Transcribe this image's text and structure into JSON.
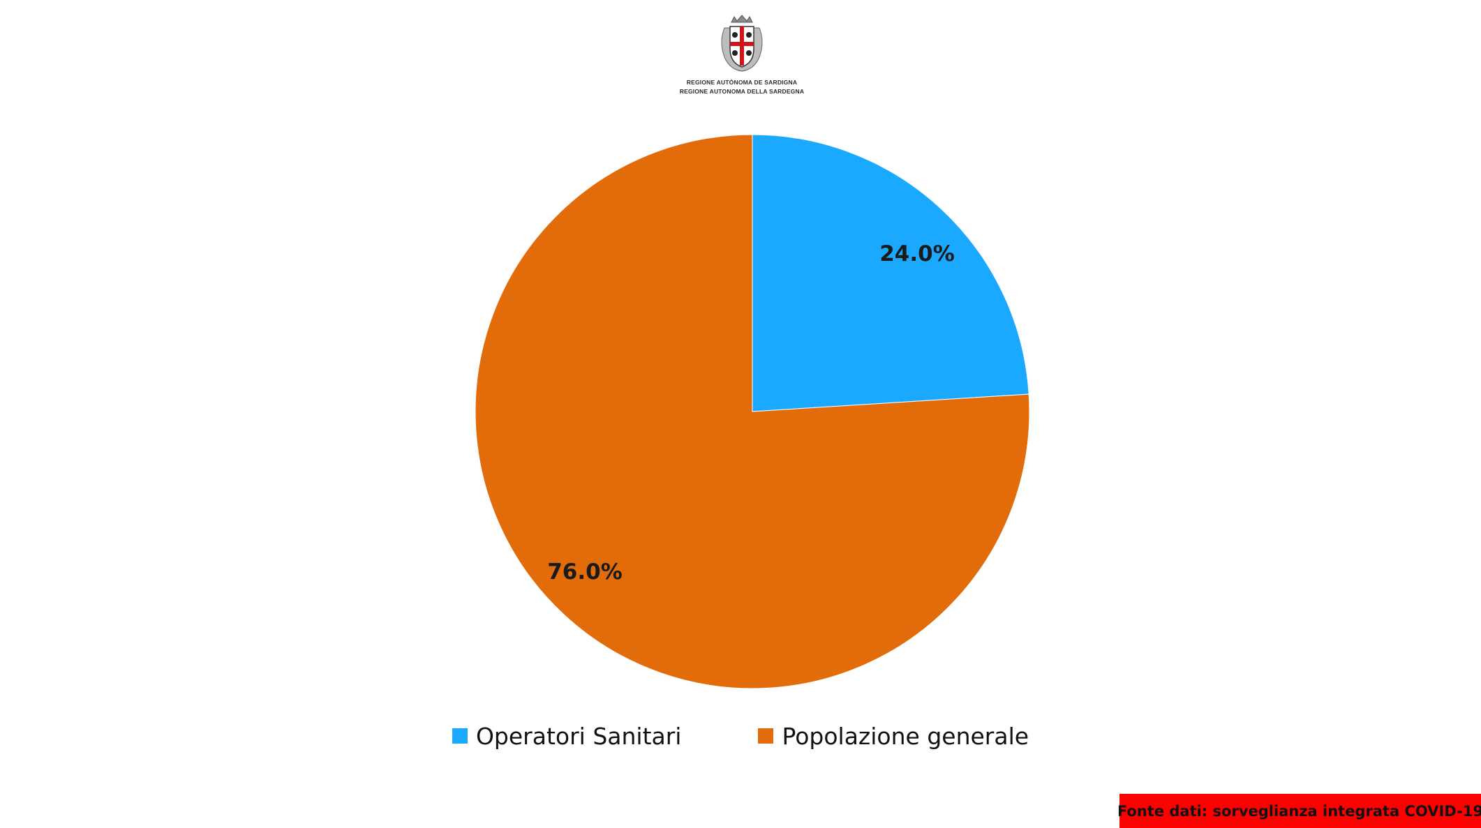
{
  "header": {
    "logo_line_1": "REGIONE AUTÒNOMA DE SARDIGNA",
    "logo_line_2": "REGIONE AUTONOMA DELLA SARDEGNA"
  },
  "colors": {
    "operatori": "#1aa9ff",
    "popolazione": "#e26c0a",
    "source_bg": "#ff0000"
  },
  "chart_data": {
    "type": "pie",
    "title": "",
    "slices": [
      {
        "name": "Operatori Sanitari",
        "value": 24.0,
        "label": "24.0%",
        "color": "#1aa9ff"
      },
      {
        "name": "Popolazione generale",
        "value": 76.0,
        "label": "76.0%",
        "color": "#e26c0a"
      }
    ],
    "start_angle": "12 o'clock, clockwise",
    "legend": "bottom"
  },
  "footer": {
    "source": "Fonte dati: sorveglianza integrata COVID-19"
  }
}
